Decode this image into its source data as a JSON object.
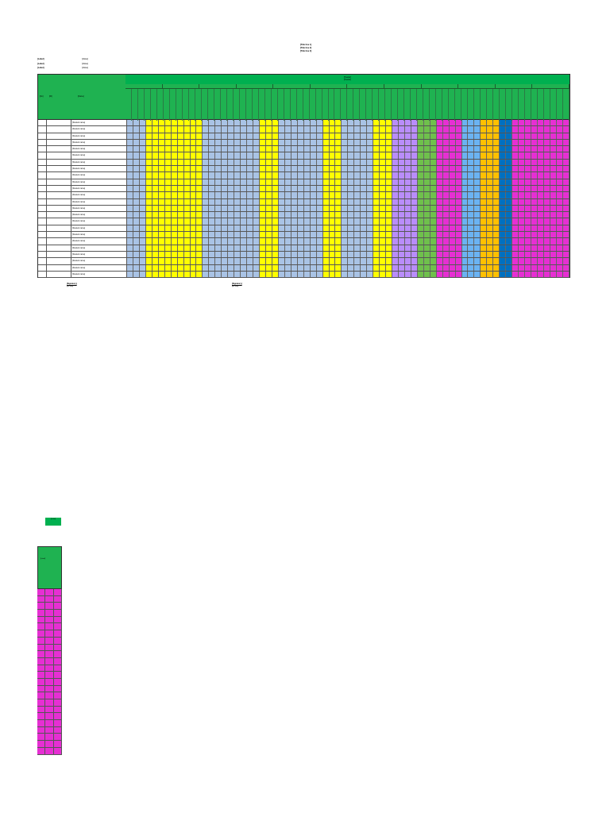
{
  "document": {
    "title_line_1": "[Title line 1]",
    "title_line_2": "[Title line 2]",
    "title_line_3": "[Title line 3]"
  },
  "meta": [
    {
      "key": "[Label]",
      "value": "[Value]"
    },
    {
      "key": "[Label]",
      "value": "[Value]"
    },
    {
      "key": "[Label]",
      "value": "[Value]"
    }
  ],
  "table": {
    "col_no": "[No]",
    "col_nisn": "[ID]",
    "col_name": "[Name]",
    "band_title_1": "[Header]",
    "band_title_2": "[Header]",
    "groups": [
      "",
      "",
      "",
      "",
      "",
      "",
      "",
      "",
      "",
      "",
      "",
      ""
    ],
    "rows": [
      {
        "no": "",
        "name": "[Student name]"
      },
      {
        "no": "",
        "name": "[Student name]"
      },
      {
        "no": "",
        "name": "[Student name]"
      },
      {
        "no": "",
        "name": "[Student name]"
      },
      {
        "no": "",
        "name": "[Student name]"
      },
      {
        "no": "",
        "name": "[Student name]"
      },
      {
        "no": "",
        "name": "[Student name]"
      },
      {
        "no": "",
        "name": "[Student name]"
      },
      {
        "no": "",
        "name": "[Student name]"
      },
      {
        "no": "",
        "name": "[Student name]"
      },
      {
        "no": "",
        "name": "[Student name]"
      },
      {
        "no": "",
        "name": "[Student name]"
      },
      {
        "no": "",
        "name": "[Student name]"
      },
      {
        "no": "",
        "name": "[Student name]"
      },
      {
        "no": "",
        "name": "[Student name]"
      },
      {
        "no": "",
        "name": "[Student name]"
      },
      {
        "no": "",
        "name": "[Student name]"
      },
      {
        "no": "",
        "name": "[Student name]"
      },
      {
        "no": "",
        "name": "[Student name]"
      },
      {
        "no": "",
        "name": "[Student name]"
      },
      {
        "no": "",
        "name": "[Student name]"
      },
      {
        "no": "",
        "name": "[Student name]"
      },
      {
        "no": "",
        "name": "[Student name]"
      },
      {
        "no": "",
        "name": "[Student name]"
      }
    ],
    "cell_colors": [
      "#a9c3e5",
      "#a9c3e5",
      "#a9c3e5",
      "#ffff00",
      "#ffff00",
      "#ffff00",
      "#ffff00",
      "#ffff00",
      "#ffff00",
      "#ffff00",
      "#ffff00",
      "#ffff00",
      "#a9c3e5",
      "#a9c3e5",
      "#a9c3e5",
      "#a9c3e5",
      "#a9c3e5",
      "#a9c3e5",
      "#a9c3e5",
      "#a9c3e5",
      "#a9c3e5",
      "#ffff00",
      "#ffff00",
      "#ffff00",
      "#a9c3e5",
      "#a9c3e5",
      "#a9c3e5",
      "#a9c3e5",
      "#a9c3e5",
      "#a9c3e5",
      "#a9c3e5",
      "#ffff00",
      "#ffff00",
      "#ffff00",
      "#a9c3e5",
      "#a9c3e5",
      "#a9c3e5",
      "#a9c3e5",
      "#a9c3e5",
      "#ffff00",
      "#ffff00",
      "#ffff00",
      "#b98dfa",
      "#b98dfa",
      "#b98dfa",
      "#b98dfa",
      "#6fc04c",
      "#6fc04c",
      "#6fc04c",
      "#e62fd3",
      "#e62fd3",
      "#e62fd3",
      "#e62fd3",
      "#6bb3f2",
      "#6bb3f2",
      "#6bb3f2",
      "#ffc000",
      "#ffc000",
      "#ffc000",
      "#0070c0",
      "#0070c0",
      "#e62fd3",
      "#e62fd3",
      "#e62fd3",
      "#e62fd3",
      "#e62fd3",
      "#e62fd3",
      "#e62fd3",
      "#e62fd3",
      "#e62fd3"
    ]
  },
  "signatures": {
    "left_name": "[Signatory]",
    "left_id": "[ID line]",
    "right_name": "[Signatory]",
    "right_id": "[ID line]"
  },
  "mini": {
    "tag": "[Label]",
    "label": "[Label]",
    "rows": 24
  }
}
